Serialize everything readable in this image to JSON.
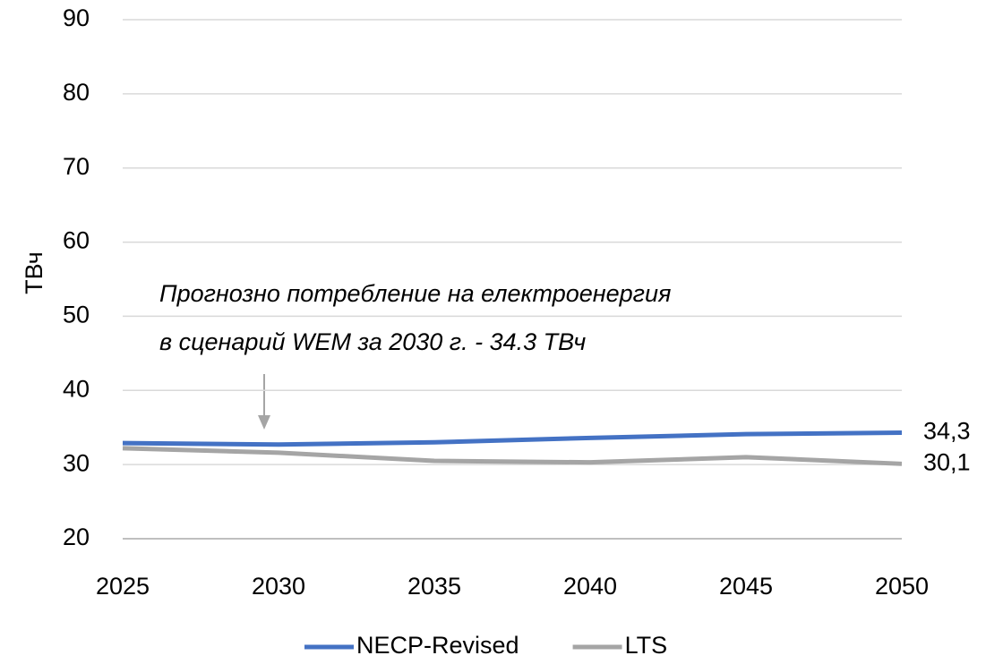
{
  "chart_data": {
    "type": "line",
    "y_label": "ТВч",
    "annotation": [
      "Прогнозно потребление на електроенергия",
      "в сценарий WEM за 2030 г. - 34.3 ТВч"
    ],
    "x": [
      2025,
      2030,
      2035,
      2040,
      2045,
      2050
    ],
    "xlim": [
      2025,
      2050
    ],
    "xticks": [
      2025,
      2030,
      2035,
      2040,
      2045,
      2050
    ],
    "ylim": [
      20,
      90
    ],
    "yticks": [
      20,
      30,
      40,
      50,
      60,
      70,
      80,
      90
    ],
    "grid": true,
    "legend": "bottom",
    "series": [
      {
        "name": "NECP-Revised",
        "color": "#4472c4",
        "values": [
          32.9,
          32.7,
          33.0,
          33.6,
          34.1,
          34.3
        ],
        "value_labels": [
          null,
          null,
          null,
          null,
          null,
          "34,3"
        ]
      },
      {
        "name": "LTS",
        "color": "#a5a5a5",
        "values": [
          32.2,
          31.6,
          30.5,
          30.3,
          31.0,
          30.1
        ],
        "value_labels": [
          null,
          null,
          null,
          null,
          null,
          "30,1"
        ]
      }
    ]
  }
}
